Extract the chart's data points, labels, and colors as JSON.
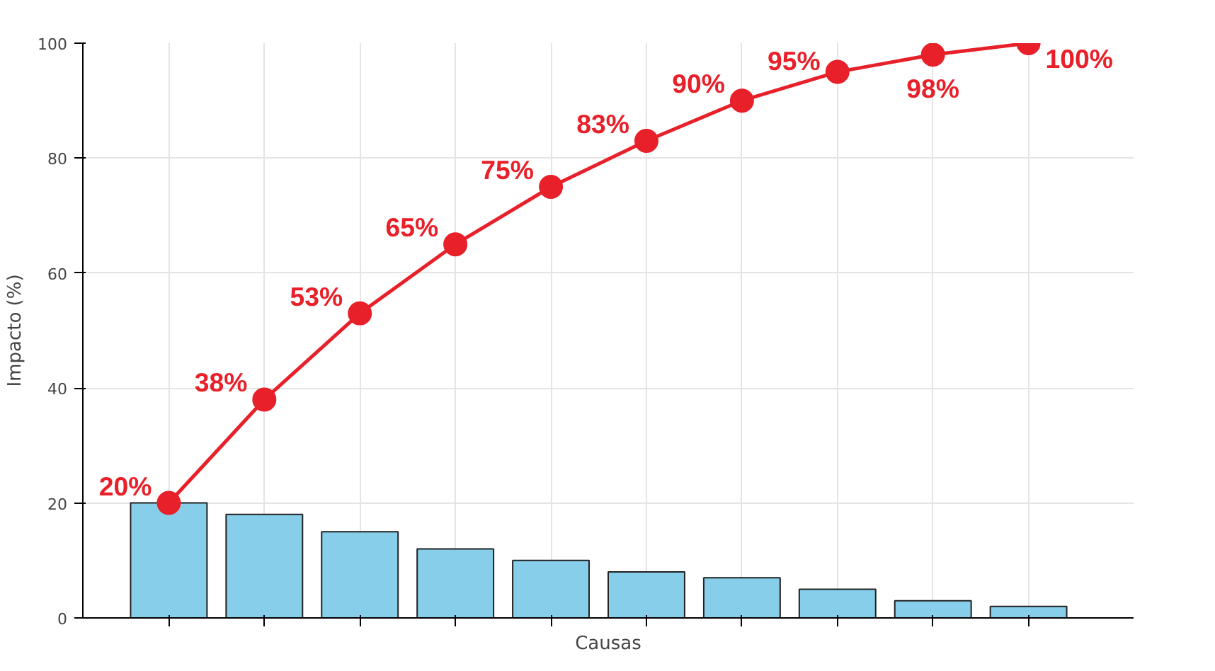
{
  "chart_data": {
    "type": "bar",
    "xlabel": "Causas",
    "ylabel": "Impacto (%)",
    "categories": [
      null,
      null,
      null,
      null,
      null,
      null,
      null,
      null,
      null,
      null
    ],
    "series": [
      {
        "color": "#87ceeb",
        "values": [
          20,
          18,
          15,
          12,
          10,
          8,
          7,
          5,
          3,
          2
        ]
      },
      {
        "type": "line",
        "color": "#e8202a",
        "marker": "circle",
        "values": [
          20,
          38,
          53,
          65,
          75,
          83,
          90,
          95,
          98,
          100
        ],
        "value_labels": [
          "20%",
          "38%",
          "53%",
          "65%",
          "75%",
          "83%",
          "90%",
          "95%",
          "98%",
          "100%"
        ]
      }
    ],
    "ylim": [
      0,
      100
    ],
    "yticks": [
      0,
      20,
      40,
      60,
      80,
      100
    ],
    "grid": true,
    "tick_labels": "y"
  }
}
